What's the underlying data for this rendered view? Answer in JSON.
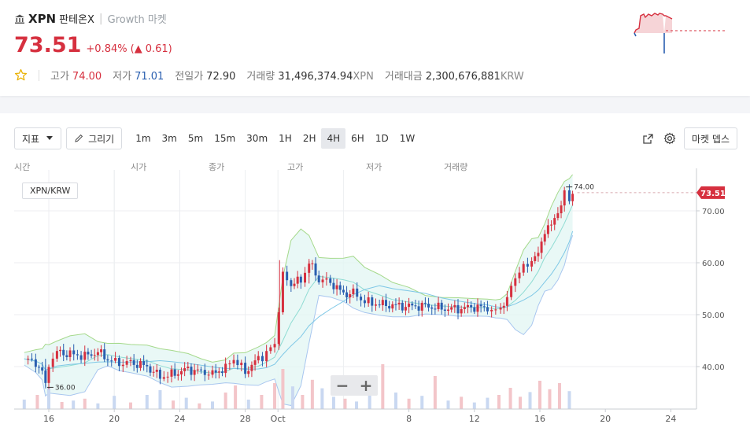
{
  "header": {
    "symbol": "XPN",
    "korean_name": "판테온X",
    "market": "Growth 마켓",
    "price": "73.51",
    "change_percent": "+0.84%",
    "change_open": "(",
    "change_arrow": "▲",
    "change_abs": "0.61)",
    "stats": [
      {
        "label": "고가",
        "value": "74.00",
        "tone": "up"
      },
      {
        "label": "저가",
        "value": "71.01",
        "tone": "down"
      },
      {
        "label": "전일가",
        "value": "72.90",
        "tone": "plain"
      },
      {
        "label": "거래량",
        "value": "31,496,374.94",
        "unit": "XPN",
        "tone": "plain"
      },
      {
        "label": "거래대금",
        "value": "2,300,676,881",
        "unit": "KRW",
        "tone": "plain"
      }
    ]
  },
  "toolbar": {
    "indicator_label": "지표",
    "draw_label": "그리기",
    "timeframes": [
      "1m",
      "3m",
      "5m",
      "15m",
      "30m",
      "1H",
      "2H",
      "4H",
      "6H",
      "1D",
      "1W"
    ],
    "active_timeframe": "4H",
    "depth_label": "마켓 뎁스"
  },
  "legend": [
    "시간",
    "시가",
    "종가",
    "고가",
    "저가",
    "거래량"
  ],
  "pair_label": "XPN/KRW",
  "zoom": {
    "minus": "−",
    "plus": "+"
  },
  "colors": {
    "up": "#d6303f",
    "down": "#2a5fb0",
    "accent": "#d6303f"
  },
  "chart_data": {
    "type": "candlestick",
    "timeframe": "4H",
    "y_ticks": [
      "40.00",
      "50.00",
      "60.00",
      "70.00"
    ],
    "ylim": [
      32,
      76
    ],
    "x_ticks": [
      "16",
      "20",
      "24",
      "28",
      "Oct",
      "4",
      "8",
      "12",
      "16",
      "20",
      "24"
    ],
    "last_price": "73.51",
    "high_marker": "74.00",
    "low_marker": "36.00",
    "close_path": [
      [
        14.5,
        41.5
      ],
      [
        15.2,
        40.6
      ],
      [
        15.6,
        39.2
      ],
      [
        15.8,
        36.0
      ],
      [
        16.0,
        40.5
      ],
      [
        16.5,
        42.8
      ],
      [
        17.3,
        42.4
      ],
      [
        18.2,
        42.0
      ],
      [
        19.0,
        42.8
      ],
      [
        19.6,
        41.5
      ],
      [
        20.3,
        40.6
      ],
      [
        21.0,
        40.8
      ],
      [
        22.0,
        40.0
      ],
      [
        22.8,
        38.0
      ],
      [
        23.5,
        38.5
      ],
      [
        24.5,
        39.5
      ],
      [
        25.3,
        39.0
      ],
      [
        26.0,
        38.6
      ],
      [
        26.8,
        39.8
      ],
      [
        27.3,
        41.5
      ],
      [
        28.0,
        39.0
      ],
      [
        28.8,
        41.5
      ],
      [
        29.3,
        42.5
      ],
      [
        29.8,
        44.5
      ],
      [
        30.3,
        57.5
      ],
      [
        30.8,
        56.0
      ],
      [
        31.4,
        56.5
      ],
      [
        31.9,
        60.0
      ],
      [
        32.5,
        56.8
      ],
      [
        33.2,
        56.3
      ],
      [
        34.0,
        54.0
      ],
      [
        34.6,
        54.2
      ],
      [
        35.3,
        52.5
      ],
      [
        36.2,
        52.0
      ],
      [
        37.0,
        51.8
      ],
      [
        38.0,
        51.6
      ],
      [
        39.0,
        51.7
      ],
      [
        40.0,
        51.2
      ],
      [
        41.0,
        51.1
      ],
      [
        42.0,
        51.5
      ],
      [
        42.8,
        51.2
      ],
      [
        43.3,
        50.5
      ],
      [
        43.6,
        51.5
      ],
      [
        44.0,
        53.0
      ],
      [
        44.5,
        57.5
      ],
      [
        45.0,
        59.0
      ],
      [
        45.5,
        60.5
      ],
      [
        45.9,
        61.5
      ],
      [
        46.3,
        66.5
      ],
      [
        46.7,
        67.0
      ],
      [
        47.1,
        70.0
      ],
      [
        47.5,
        73.0
      ],
      [
        47.8,
        72.2
      ],
      [
        48.0,
        73.51
      ]
    ],
    "volumes": [
      [
        14.5,
        0.2,
        "down"
      ],
      [
        15.3,
        0.3,
        "up"
      ],
      [
        16.0,
        0.45,
        "down"
      ],
      [
        16.8,
        0.15,
        "up"
      ],
      [
        17.5,
        0.18,
        "down"
      ],
      [
        18.2,
        0.22,
        "up"
      ],
      [
        19.0,
        0.12,
        "down"
      ],
      [
        20.0,
        0.28,
        "down"
      ],
      [
        21.0,
        0.14,
        "up"
      ],
      [
        22.0,
        0.3,
        "down"
      ],
      [
        22.8,
        0.4,
        "down"
      ],
      [
        23.6,
        0.18,
        "up"
      ],
      [
        24.4,
        0.24,
        "down"
      ],
      [
        25.2,
        0.12,
        "up"
      ],
      [
        26.0,
        0.16,
        "down"
      ],
      [
        26.8,
        0.35,
        "up"
      ],
      [
        27.4,
        0.5,
        "up"
      ],
      [
        28.2,
        0.2,
        "down"
      ],
      [
        29.0,
        0.3,
        "up"
      ],
      [
        29.8,
        0.55,
        "up"
      ],
      [
        30.3,
        0.85,
        "up"
      ],
      [
        30.9,
        0.48,
        "down"
      ],
      [
        31.5,
        0.3,
        "up"
      ],
      [
        32.1,
        0.62,
        "up"
      ],
      [
        32.7,
        0.44,
        "down"
      ],
      [
        33.4,
        0.26,
        "down"
      ],
      [
        34.1,
        0.22,
        "up"
      ],
      [
        34.8,
        0.16,
        "down"
      ],
      [
        35.6,
        0.3,
        "down"
      ],
      [
        36.4,
        0.95,
        "up"
      ],
      [
        37.2,
        0.35,
        "down"
      ],
      [
        38.0,
        0.22,
        "up"
      ],
      [
        38.8,
        0.28,
        "down"
      ],
      [
        39.6,
        0.7,
        "up"
      ],
      [
        40.4,
        0.18,
        "down"
      ],
      [
        41.2,
        0.26,
        "up"
      ],
      [
        42.0,
        0.14,
        "down"
      ],
      [
        42.8,
        0.24,
        "down"
      ],
      [
        43.5,
        0.3,
        "up"
      ],
      [
        44.2,
        0.45,
        "up"
      ],
      [
        44.8,
        0.26,
        "up"
      ],
      [
        45.4,
        0.36,
        "down"
      ],
      [
        46.0,
        0.6,
        "up"
      ],
      [
        46.6,
        0.42,
        "up"
      ],
      [
        47.2,
        0.55,
        "up"
      ],
      [
        47.8,
        0.38,
        "down"
      ]
    ]
  }
}
